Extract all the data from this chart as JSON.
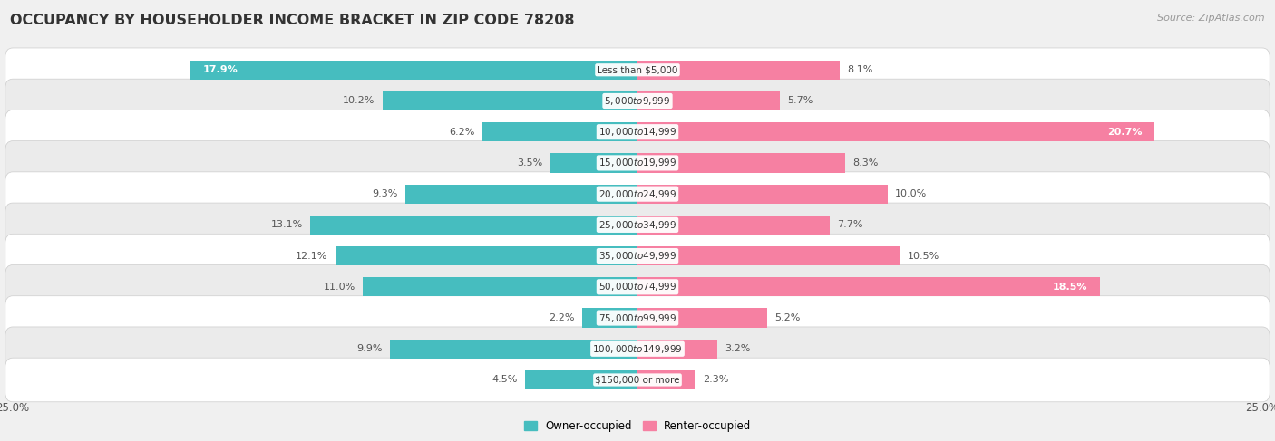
{
  "title": "OCCUPANCY BY HOUSEHOLDER INCOME BRACKET IN ZIP CODE 78208",
  "source": "Source: ZipAtlas.com",
  "categories": [
    "Less than $5,000",
    "$5,000 to $9,999",
    "$10,000 to $14,999",
    "$15,000 to $19,999",
    "$20,000 to $24,999",
    "$25,000 to $34,999",
    "$35,000 to $49,999",
    "$50,000 to $74,999",
    "$75,000 to $99,999",
    "$100,000 to $149,999",
    "$150,000 or more"
  ],
  "owner_values": [
    17.9,
    10.2,
    6.2,
    3.5,
    9.3,
    13.1,
    12.1,
    11.0,
    2.2,
    9.9,
    4.5
  ],
  "renter_values": [
    8.1,
    5.7,
    20.7,
    8.3,
    10.0,
    7.7,
    10.5,
    18.5,
    5.2,
    3.2,
    2.3
  ],
  "owner_color": "#46BDBF",
  "renter_color": "#F680A2",
  "owner_label": "Owner-occupied",
  "renter_label": "Renter-occupied",
  "x_max": 25.0,
  "bg_color": "#f0f0f0",
  "row_color_even": "#ffffff",
  "row_color_odd": "#ebebeb",
  "title_fontsize": 11.5,
  "source_fontsize": 8,
  "value_fontsize": 8,
  "category_fontsize": 7.5,
  "bar_height": 0.62,
  "legend_fontsize": 8.5,
  "inside_label_threshold": 14.0
}
